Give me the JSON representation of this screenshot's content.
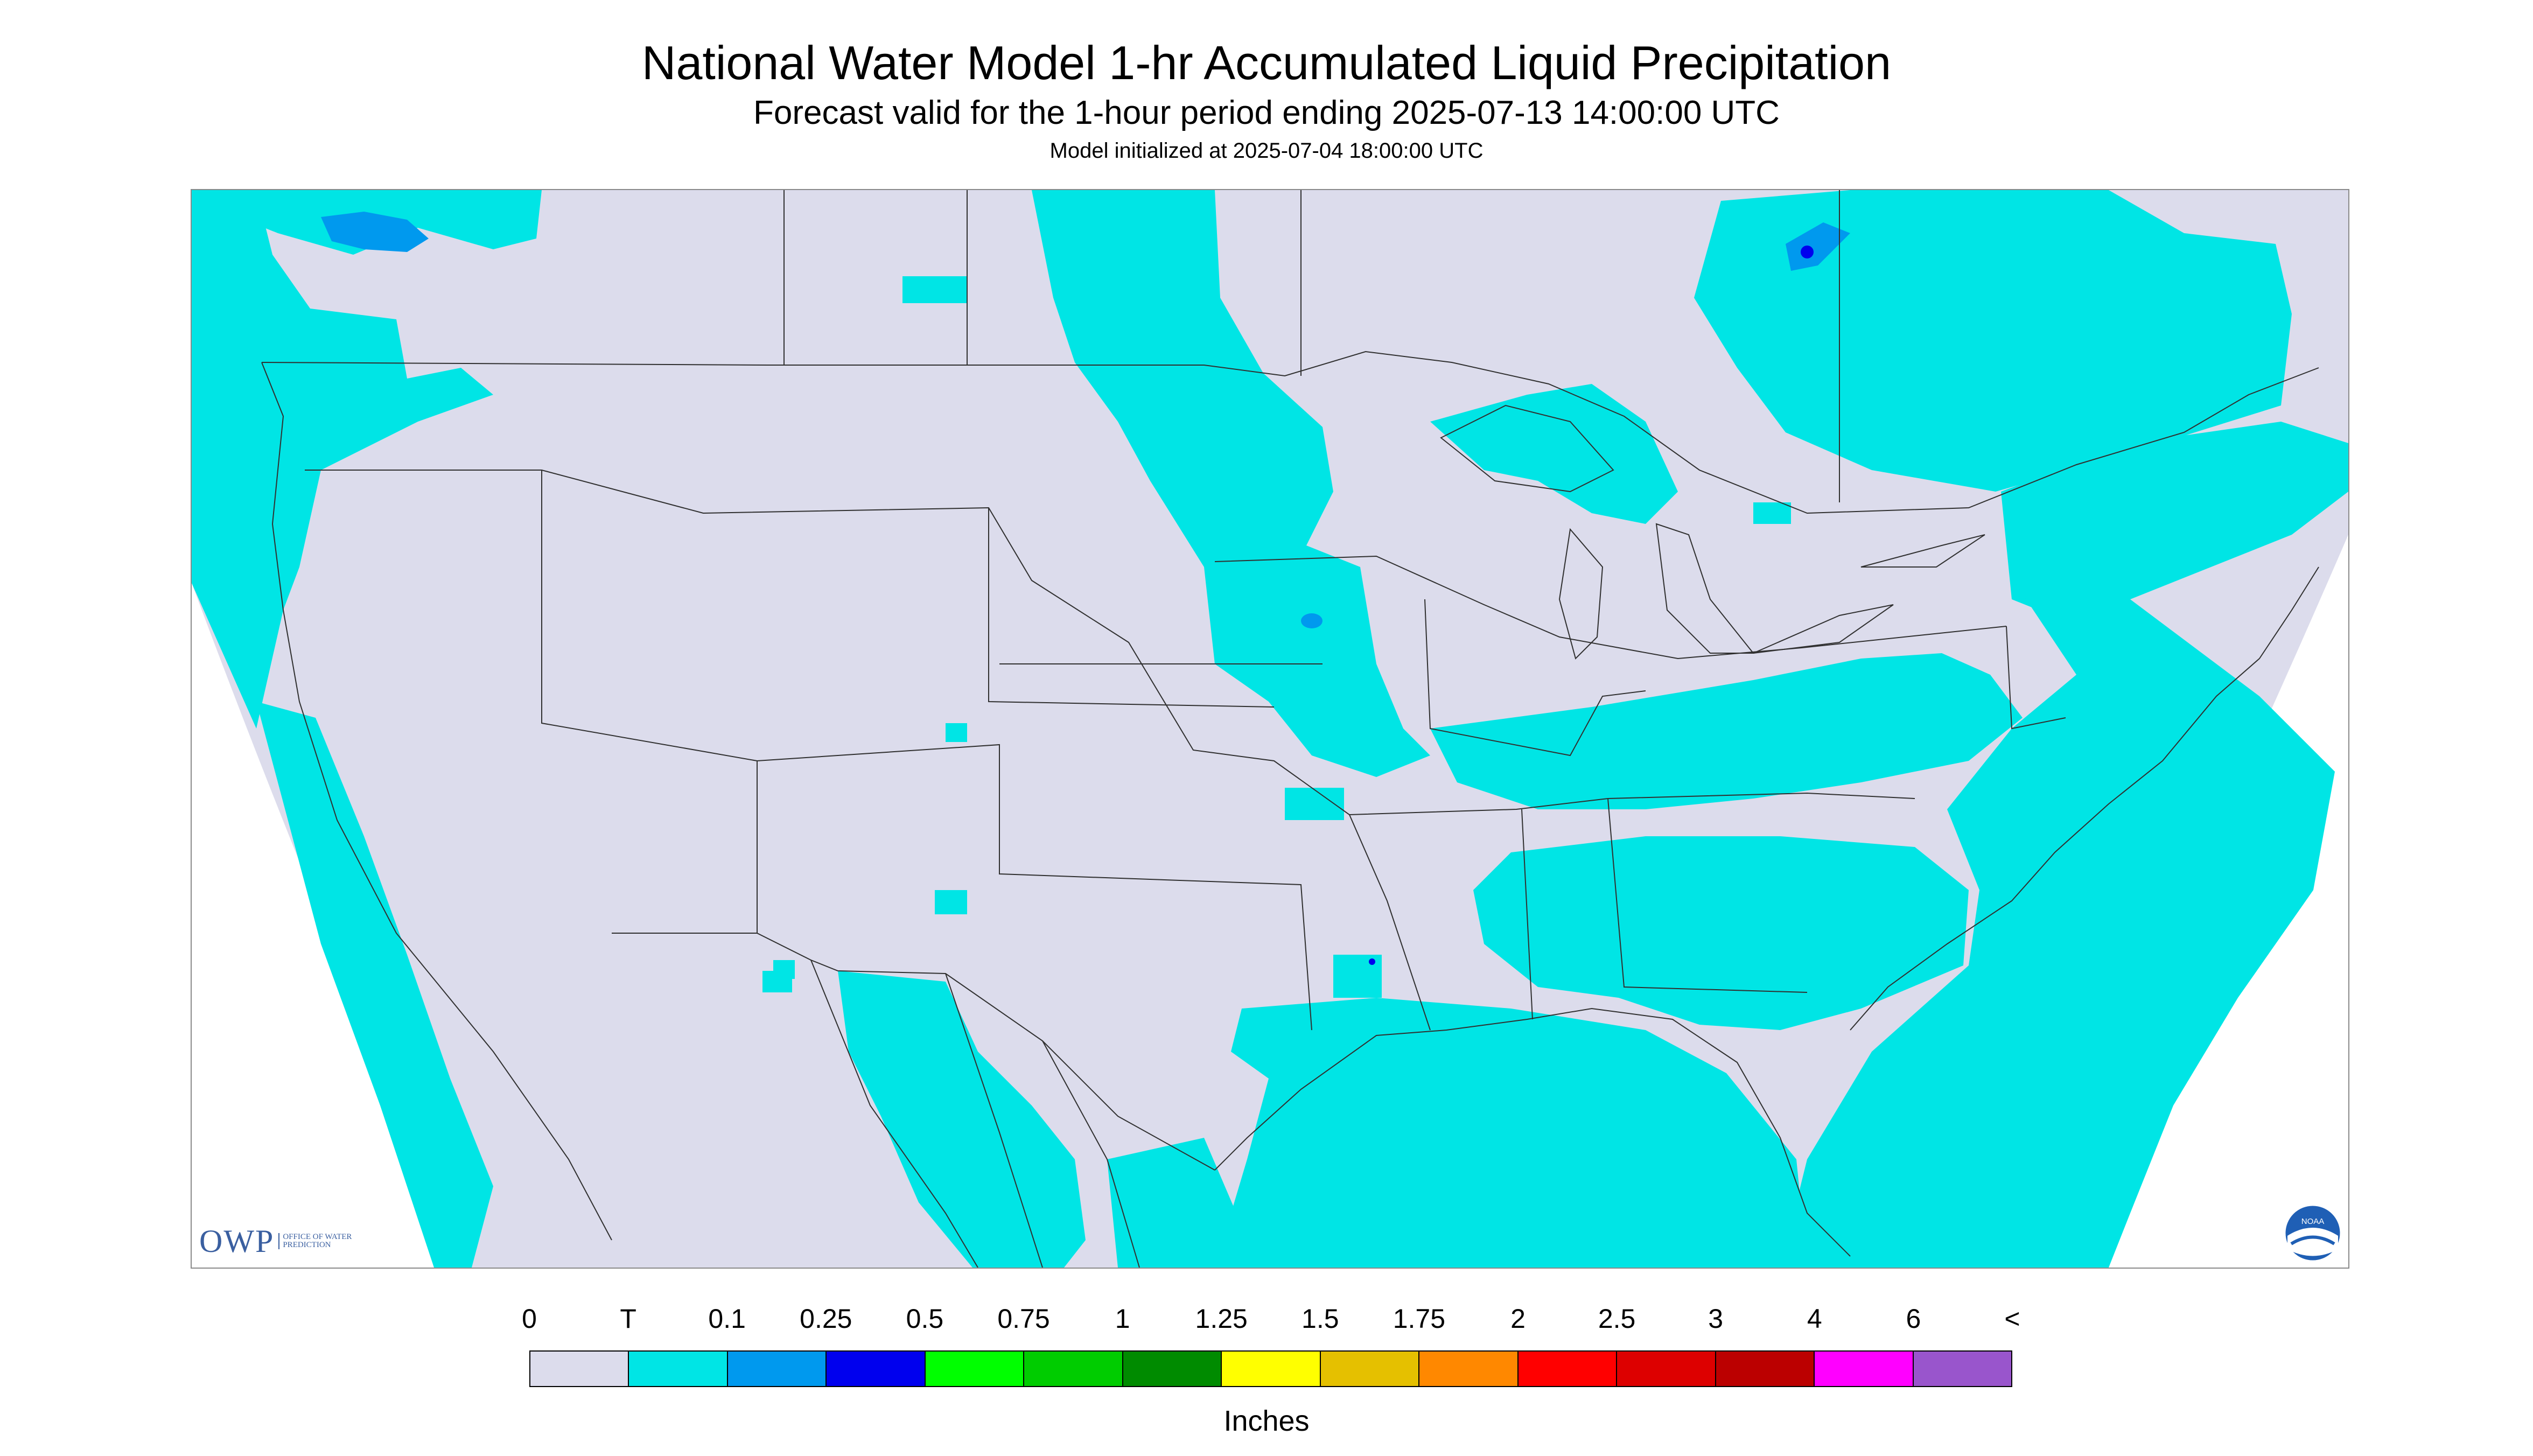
{
  "title": "National Water Model 1-hr Accumulated Liquid Precipitation",
  "subtitle": "Forecast valid for the 1-hour period ending 2025-07-13 14:00:00 UTC",
  "init_text": "Model initialized at 2025-07-04 18:00:00 UTC",
  "logos": {
    "owp_mark": "OWP",
    "owp_sub": "OFFICE OF WATER PREDICTION",
    "noaa_mark": "NOAA"
  },
  "colors": {
    "map_background": "#dcdcec",
    "outside_domain": "#ffffff",
    "trace": "#00e5e5",
    "light_blue": "#0099ee",
    "blue": "#0000ee",
    "boundary": "#303030"
  },
  "legend": {
    "labels": [
      "0",
      "T",
      "0.1",
      "0.25",
      "0.5",
      "0.75",
      "1",
      "1.25",
      "1.5",
      "1.75",
      "2",
      "2.5",
      "3",
      "4",
      "6",
      "<"
    ],
    "colors": [
      "#dcdcec",
      "#00e5e5",
      "#0099ee",
      "#0000ee",
      "#00ff00",
      "#00cc00",
      "#008b00",
      "#ffff00",
      "#e5c000",
      "#ff8800",
      "#ff0000",
      "#dd0000",
      "#bb0000",
      "#ff00ff",
      "#9955cc"
    ],
    "units": "Inches"
  }
}
